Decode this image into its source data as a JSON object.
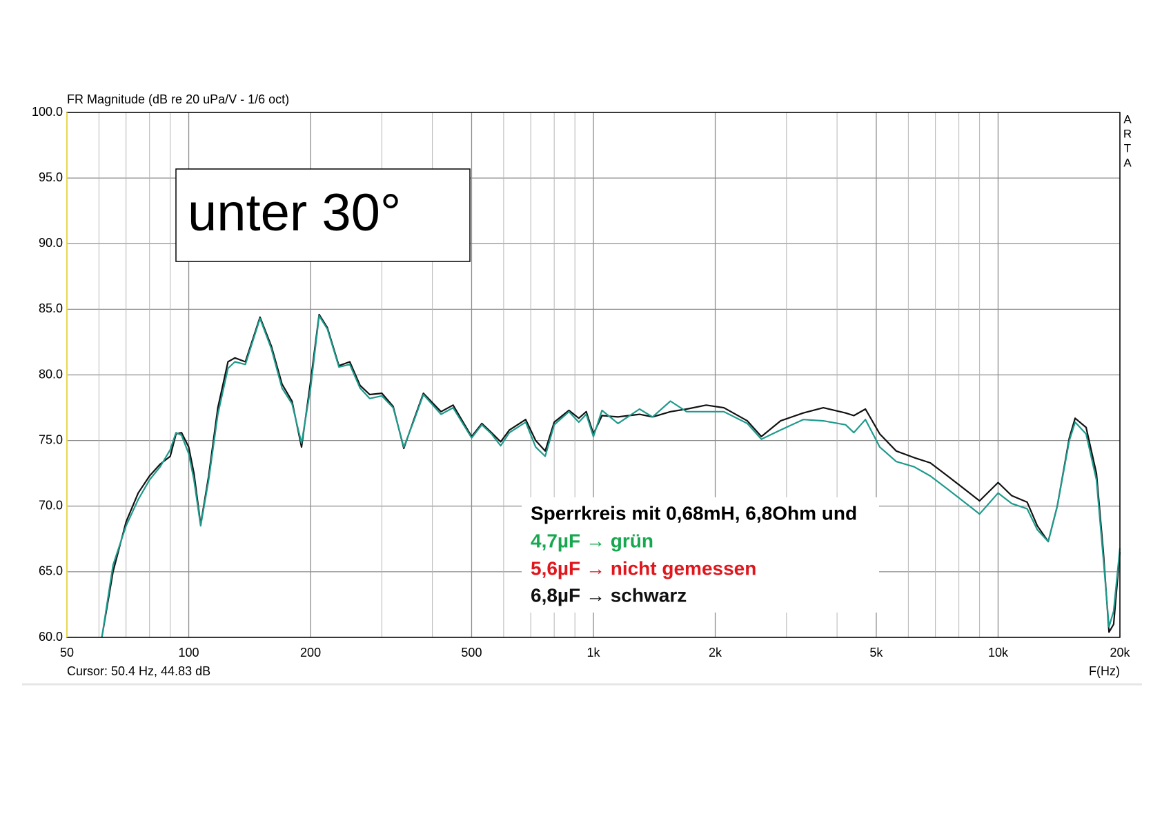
{
  "chart_data": {
    "type": "line",
    "title": "FR Magnitude (dB re 20 uPa/V - 1/6 oct)",
    "watermark": "ARTA",
    "cursor_text": "Cursor: 50.4 Hz, 44.83 dB",
    "xlabel": "F(Hz)",
    "annotation": "unter 30°",
    "legend_heading": "Sperrkreis mit 0,68mH, 6,8Ohm und",
    "legend_extra": {
      "text": "5,6µF → nicht gemessen",
      "color": "#e0161c"
    },
    "xscale": "log",
    "grid": true,
    "xlim": [
      50,
      20000
    ],
    "xticks": [
      50,
      100,
      200,
      500,
      {
        "value": 1000,
        "label": "1k"
      },
      {
        "value": 2000,
        "label": "2k"
      },
      {
        "value": 5000,
        "label": "5k"
      },
      {
        "value": 10000,
        "label": "10k"
      },
      {
        "value": 20000,
        "label": "20k"
      }
    ],
    "xminorticks": [
      60,
      70,
      80,
      90,
      300,
      400,
      600,
      700,
      800,
      900,
      3000,
      4000,
      6000,
      7000,
      8000,
      9000
    ],
    "ylim": [
      60,
      100
    ],
    "yticks": [
      {
        "value": 60,
        "label": "60.0"
      },
      {
        "value": 65,
        "label": "65.0"
      },
      {
        "value": 70,
        "label": "70.0"
      },
      {
        "value": 75,
        "label": "75.0"
      },
      {
        "value": 80,
        "label": "80.0"
      },
      {
        "value": 85,
        "label": "85.0"
      },
      {
        "value": 90,
        "label": "90.0"
      },
      {
        "value": 95,
        "label": "95.0"
      },
      {
        "value": 100,
        "label": "100.0"
      }
    ],
    "x": [
      61,
      65,
      70,
      75,
      80,
      85,
      90,
      93,
      96,
      100,
      103,
      107,
      112,
      118,
      125,
      130,
      138,
      150,
      160,
      170,
      180,
      190,
      200,
      210,
      220,
      235,
      250,
      265,
      280,
      300,
      320,
      340,
      360,
      380,
      420,
      450,
      500,
      530,
      560,
      590,
      620,
      680,
      720,
      760,
      800,
      870,
      920,
      960,
      1000,
      1050,
      1150,
      1300,
      1400,
      1550,
      1700,
      1900,
      2100,
      2400,
      2600,
      2900,
      3300,
      3700,
      4200,
      4400,
      4700,
      5100,
      5600,
      6200,
      6800,
      7500,
      8500,
      9000,
      10000,
      10800,
      11800,
      12500,
      13300,
      14000,
      15000,
      15500,
      16500,
      17500,
      18200,
      18800,
      19300,
      20000
    ],
    "series": [
      {
        "name": "6,8µF → schwarz",
        "color": "#111111",
        "values": [
          60,
          65,
          68.8,
          71,
          72.3,
          73.2,
          73.8,
          75.5,
          75.6,
          74.5,
          72.5,
          68.6,
          72.3,
          77.5,
          81,
          81.3,
          81,
          84.4,
          82.2,
          79.3,
          78,
          74.5,
          79.5,
          84.6,
          83.6,
          80.7,
          81,
          79.2,
          78.5,
          78.6,
          77.6,
          74.4,
          76.6,
          78.6,
          77.2,
          77.7,
          75.3,
          76.3,
          75.6,
          74.9,
          75.8,
          76.6,
          75,
          74.2,
          76.4,
          77.3,
          76.7,
          77.2,
          75.5,
          76.9,
          76.8,
          77,
          76.8,
          77.2,
          77.4,
          77.7,
          77.5,
          76.5,
          75.3,
          76.5,
          77.1,
          77.5,
          77.1,
          76.9,
          77.4,
          75.5,
          74.2,
          73.7,
          73.3,
          72.3,
          71,
          70.4,
          71.8,
          70.8,
          70.3,
          68.5,
          67.3,
          70,
          75.2,
          76.7,
          76,
          72.5,
          66.5,
          60.4,
          61,
          66.5
        ]
      },
      {
        "name": "4,7µF → grün",
        "color": "#1e9a8c",
        "values": [
          60,
          65.5,
          68.5,
          70.5,
          72,
          73,
          74.3,
          75.6,
          75.4,
          74,
          72,
          68.5,
          72,
          77,
          80.5,
          81,
          80.8,
          84.3,
          82,
          79,
          77.8,
          74.8,
          79,
          84.5,
          83.5,
          80.6,
          80.8,
          79,
          78.2,
          78.4,
          77.5,
          74.5,
          76.5,
          78.5,
          77,
          77.5,
          75.2,
          76.2,
          75.5,
          74.6,
          75.6,
          76.4,
          74.5,
          73.8,
          76.2,
          77.2,
          76.4,
          77,
          75.3,
          77.3,
          76.3,
          77.4,
          76.8,
          78,
          77.2,
          77.2,
          77.2,
          76.3,
          75.1,
          75.8,
          76.6,
          76.5,
          76.2,
          75.6,
          76.6,
          74.5,
          73.4,
          73,
          72.3,
          71.3,
          70,
          69.4,
          71,
          70.2,
          69.8,
          68.2,
          67.3,
          70,
          75,
          76.4,
          75.5,
          72,
          66,
          60.8,
          62,
          66.8
        ]
      }
    ]
  }
}
